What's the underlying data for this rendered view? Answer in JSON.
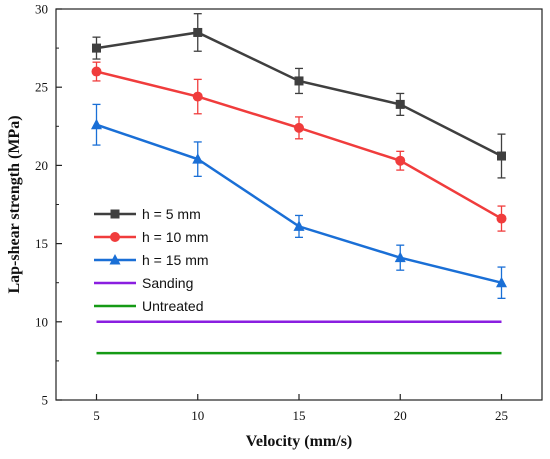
{
  "chart_data": {
    "type": "line",
    "xlabel": "Velocity (mm/s)",
    "ylabel": "Lap-shear strength (MPa)",
    "xlim": [
      3,
      27
    ],
    "ylim": [
      5,
      30
    ],
    "xticks": [
      5,
      10,
      15,
      20,
      25
    ],
    "yticks": [
      5,
      10,
      15,
      20,
      25,
      30
    ],
    "legend_position": "left",
    "series": [
      {
        "name": "h = 5 mm",
        "color": "#3f3f3f",
        "marker": "square",
        "x": [
          5,
          10,
          15,
          20,
          25
        ],
        "y": [
          27.5,
          28.5,
          25.4,
          23.9,
          20.6
        ],
        "err": [
          0.7,
          1.2,
          0.8,
          0.7,
          1.4
        ]
      },
      {
        "name": "h = 10 mm",
        "color": "#f03c3c",
        "marker": "circle",
        "x": [
          5,
          10,
          15,
          20,
          25
        ],
        "y": [
          26.0,
          24.4,
          22.4,
          20.3,
          16.6
        ],
        "err": [
          0.6,
          1.1,
          0.7,
          0.6,
          0.8
        ]
      },
      {
        "name": "h = 15 mm",
        "color": "#1a6fd6",
        "marker": "triangle",
        "x": [
          5,
          10,
          15,
          20,
          25
        ],
        "y": [
          22.6,
          20.4,
          16.1,
          14.1,
          12.5
        ],
        "err": [
          1.3,
          1.1,
          0.7,
          0.8,
          1.0
        ]
      },
      {
        "name": "Sanding",
        "color": "#8a1ee0",
        "marker": "none",
        "x": [
          5,
          25
        ],
        "y": [
          10,
          10
        ]
      },
      {
        "name": "Untreated",
        "color": "#159a15",
        "marker": "none",
        "x": [
          5,
          25
        ],
        "y": [
          8,
          8
        ]
      }
    ]
  }
}
